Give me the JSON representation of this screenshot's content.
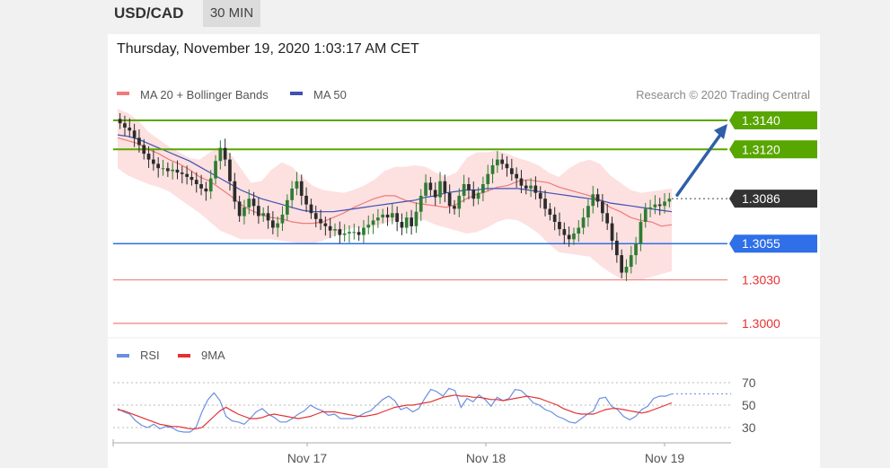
{
  "header": {
    "symbol": "USD/CAD",
    "timeframe": "30 MIN"
  },
  "date_text": "Thursday, November 19, 2020 1:03:17 AM CET",
  "legend": {
    "ma20_label": "MA 20 + Bollinger Bands",
    "ma50_label": "MA 50",
    "credit": "Research © 2020 Trading Central",
    "rsi_label": "RSI",
    "ma9_label": "9MA"
  },
  "colors": {
    "bullish_candle": "#2e7d32",
    "bearish_candle": "#2b2b2b",
    "resistance": "#58a600",
    "support": "#2f6fe8",
    "target_low": "#f08080",
    "ma20": "#f07a7a",
    "ma50": "#3f51b5",
    "band_fill": "#fde0e0",
    "arrow": "#2f5fa8",
    "rsi": "#6b8fe0",
    "ma9": "#e53030",
    "current": "#333333"
  },
  "chart_data": [
    {
      "type": "candlestick",
      "x_ticks": [
        "Nov 17",
        "Nov 18",
        "Nov 19"
      ],
      "ylim": [
        1.2985,
        1.3145
      ],
      "levels": [
        {
          "value": 1.314,
          "label": "1.3140",
          "kind": "resistance"
        },
        {
          "value": 1.312,
          "label": "1.3120",
          "kind": "resistance"
        },
        {
          "value": 1.3086,
          "label": "1.3086",
          "kind": "current"
        },
        {
          "value": 1.3055,
          "label": "1.3055",
          "kind": "support"
        },
        {
          "value": 1.303,
          "label": "1.3030",
          "kind": "target"
        },
        {
          "value": 1.3,
          "label": "1.3000",
          "kind": "target"
        }
      ],
      "close_series": [
        1.3138,
        1.3135,
        1.3133,
        1.3128,
        1.3123,
        1.3117,
        1.3113,
        1.311,
        1.3107,
        1.3107,
        1.3105,
        1.3106,
        1.3104,
        1.3103,
        1.3101,
        1.3099,
        1.3096,
        1.3093,
        1.3091,
        1.31,
        1.3112,
        1.3121,
        1.3113,
        1.3098,
        1.3084,
        1.3074,
        1.308,
        1.3086,
        1.3081,
        1.3074,
        1.3076,
        1.3071,
        1.3066,
        1.3069,
        1.3075,
        1.3085,
        1.3093,
        1.3098,
        1.3088,
        1.3082,
        1.3076,
        1.3072,
        1.3069,
        1.3067,
        1.3064,
        1.3065,
        1.3061,
        1.3062,
        1.3063,
        1.3063,
        1.3061,
        1.3066,
        1.3068,
        1.3071,
        1.3073,
        1.3075,
        1.3073,
        1.3076,
        1.307,
        1.3066,
        1.3073,
        1.3067,
        1.3077,
        1.3088,
        1.3097,
        1.3092,
        1.3087,
        1.3098,
        1.309,
        1.3081,
        1.3079,
        1.3088,
        1.3096,
        1.3092,
        1.3086,
        1.309,
        1.3096,
        1.3103,
        1.3109,
        1.3113,
        1.311,
        1.3107,
        1.3103,
        1.31,
        1.3095,
        1.3093,
        1.3095,
        1.309,
        1.3086,
        1.3079,
        1.3075,
        1.307,
        1.3065,
        1.3061,
        1.3058,
        1.3062,
        1.3066,
        1.3073,
        1.3081,
        1.3089,
        1.3084,
        1.3076,
        1.3069,
        1.3057,
        1.3047,
        1.3035,
        1.3039,
        1.3047,
        1.3055,
        1.307,
        1.3079,
        1.308,
        1.3082,
        1.3081,
        1.3084,
        1.3086
      ],
      "ma20": [
        1.3128,
        1.3126,
        1.3124,
        1.312,
        1.3117,
        1.3113,
        1.311,
        1.3106,
        1.3101,
        1.3098,
        1.3093,
        1.3088,
        1.3082,
        1.3078,
        1.3075,
        1.3073,
        1.3072,
        1.307,
        1.3069,
        1.3069,
        1.307,
        1.3073,
        1.3076,
        1.308,
        1.3083,
        1.3086,
        1.3088,
        1.3088,
        1.3085,
        1.3083,
        1.3082,
        1.3081,
        1.308,
        1.3082,
        1.3086,
        1.3089,
        1.3091,
        1.3094,
        1.3095,
        1.3098,
        1.3099,
        1.3098,
        1.3097,
        1.3094,
        1.3092,
        1.309,
        1.3088,
        1.3085,
        1.308,
        1.3077,
        1.3073,
        1.3071,
        1.307,
        1.3067,
        1.3068
      ],
      "ma50": [
        1.313,
        1.3129,
        1.3127,
        1.3124,
        1.3121,
        1.3118,
        1.3115,
        1.3112,
        1.3108,
        1.3104,
        1.31,
        1.3096,
        1.3092,
        1.3089,
        1.3086,
        1.3084,
        1.3082,
        1.308,
        1.3078,
        1.3077,
        1.3077,
        1.3077,
        1.3078,
        1.3079,
        1.308,
        1.3081,
        1.3082,
        1.3083,
        1.3084,
        1.3085,
        1.3087,
        1.3088,
        1.309,
        1.3091,
        1.3092,
        1.3092,
        1.3093,
        1.3093,
        1.3093,
        1.3093,
        1.3092,
        1.3091,
        1.309,
        1.3089,
        1.3088,
        1.3087,
        1.3086,
        1.3085,
        1.3083,
        1.3082,
        1.3081,
        1.308,
        1.3079,
        1.3078,
        1.3077
      ],
      "band_upper": [
        1.3148,
        1.3145,
        1.314,
        1.3132,
        1.3127,
        1.3122,
        1.3118,
        1.3114,
        1.3113,
        1.3118,
        1.3122,
        1.3117,
        1.3107,
        1.3097,
        1.3098,
        1.3106,
        1.3111,
        1.3108,
        1.3101,
        1.3095,
        1.3092,
        1.3091,
        1.309,
        1.3092,
        1.3095,
        1.3099,
        1.3105,
        1.3108,
        1.3108,
        1.3109,
        1.3108,
        1.3104,
        1.3101,
        1.3104,
        1.3114,
        1.3118,
        1.3118,
        1.3119,
        1.3117,
        1.3114,
        1.3112,
        1.3109,
        1.3104,
        1.3101,
        1.3107,
        1.3111,
        1.3113,
        1.311,
        1.3102,
        1.3097,
        1.3092,
        1.309,
        1.3091,
        1.3092,
        1.3093
      ],
      "band_lower": [
        1.3107,
        1.3102,
        1.3099,
        1.3096,
        1.3094,
        1.3091,
        1.3086,
        1.3081,
        1.3076,
        1.307,
        1.3064,
        1.3061,
        1.3058,
        1.3058,
        1.3058,
        1.3058,
        1.3057,
        1.3056,
        1.3055,
        1.3055,
        1.3057,
        1.306,
        1.3064,
        1.3066,
        1.3066,
        1.3067,
        1.3069,
        1.3071,
        1.3072,
        1.3072,
        1.3071,
        1.3068,
        1.3066,
        1.3064,
        1.3062,
        1.3063,
        1.3066,
        1.307,
        1.3072,
        1.3071,
        1.3067,
        1.3062,
        1.3055,
        1.3049,
        1.3048,
        1.3047,
        1.3046,
        1.304,
        1.3035,
        1.3031,
        1.303,
        1.303,
        1.3032,
        1.3034,
        1.3036
      ]
    },
    {
      "type": "line",
      "name": "RSI",
      "y_ticks": [
        70,
        50,
        30
      ],
      "ylim": [
        20,
        80
      ],
      "rsi": [
        47,
        44,
        42,
        36,
        32,
        30,
        33,
        29,
        31,
        30,
        27,
        26,
        26,
        30,
        44,
        55,
        61,
        54,
        40,
        36,
        35,
        33,
        38,
        44,
        47,
        42,
        39,
        35,
        35,
        38,
        42,
        45,
        50,
        47,
        45,
        41,
        42,
        38,
        38,
        38,
        40,
        43,
        45,
        50,
        55,
        58,
        54,
        46,
        48,
        44,
        47,
        56,
        64,
        62,
        58,
        65,
        63,
        48,
        56,
        53,
        59,
        55,
        49,
        57,
        54,
        56,
        64,
        63,
        58,
        52,
        50,
        46,
        44,
        40,
        38,
        35,
        34,
        38,
        42,
        45,
        56,
        57,
        49,
        46,
        40,
        37,
        40,
        46,
        49,
        56,
        58,
        58,
        60
      ],
      "ma9": [
        46,
        45,
        43,
        41,
        39,
        37,
        35,
        33,
        32,
        31,
        31,
        30,
        29,
        29,
        30,
        35,
        40,
        45,
        48,
        45,
        42,
        40,
        38,
        38,
        39,
        41,
        42,
        41,
        40,
        39,
        38,
        39,
        40,
        42,
        44,
        44,
        44,
        43,
        42,
        41,
        40,
        40,
        41,
        42,
        44,
        46,
        48,
        49,
        50,
        50,
        51,
        52,
        53,
        55,
        57,
        58,
        59,
        58,
        58,
        57,
        57,
        56,
        55,
        55,
        54,
        55,
        56,
        57,
        58,
        57,
        56,
        54,
        52,
        50,
        47,
        45,
        43,
        42,
        42,
        42,
        44,
        46,
        47,
        47,
        46,
        45,
        44,
        43,
        44,
        46,
        48,
        50,
        52
      ]
    }
  ]
}
